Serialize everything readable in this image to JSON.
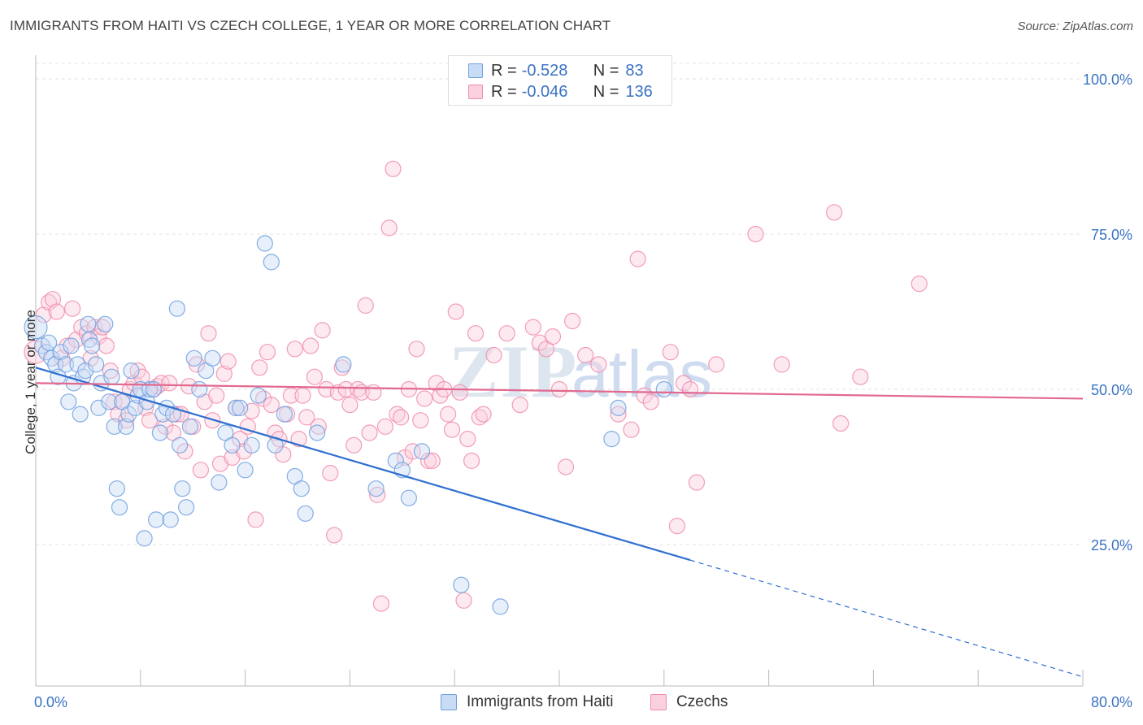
{
  "header": {
    "title": "IMMIGRANTS FROM HAITI VS CZECH COLLEGE, 1 YEAR OR MORE CORRELATION CHART",
    "source": "Source: ZipAtlas.com"
  },
  "stats_legend": [
    {
      "r_label": "R =",
      "r_value": "-0.528",
      "n_label": "N =",
      "n_value": "83",
      "color": "#6fa0e0",
      "fill": "#c9dcf5"
    },
    {
      "r_label": "R =",
      "r_value": "-0.046",
      "n_label": "N =",
      "n_value": "136",
      "color": "#f08cab",
      "fill": "#fbd0de"
    }
  ],
  "bottom_legend": [
    {
      "label": "Immigrants from Haiti",
      "color": "#6fa0e0",
      "fill": "#c9dcf5"
    },
    {
      "label": "Czechs",
      "color": "#f08cab",
      "fill": "#fbd0de"
    }
  ],
  "watermark": {
    "zip": "ZIP",
    "atlas": "atlas"
  },
  "chart_data": {
    "type": "scatter",
    "xlabel": "",
    "ylabel": "College, 1 year or more",
    "xlim": [
      0,
      80
    ],
    "ylim": [
      0,
      105
    ],
    "x_tick_labels": [
      {
        "value": 0,
        "label": "0.0%"
      },
      {
        "value": 80,
        "label": "80.0%"
      }
    ],
    "y_tick_labels": [
      {
        "value": 25,
        "label": "25.0%"
      },
      {
        "value": 50,
        "label": "50.0%"
      },
      {
        "value": 75,
        "label": "75.0%"
      },
      {
        "value": 100,
        "label": "100.0%"
      }
    ],
    "series": [
      {
        "name": "Immigrants from Haiti",
        "color": "#6fa0e0",
        "fill": "#c9dcf5",
        "trend": {
          "x0": 0,
          "y0": 53.5,
          "x1": 50,
          "y1": 22.5,
          "dash_x1": 80,
          "dash_y1": 3.7
        },
        "points": [
          [
            0.5,
            57
          ],
          [
            0.8,
            56
          ],
          [
            1,
            57.5
          ],
          [
            1.2,
            55
          ],
          [
            1.5,
            54
          ],
          [
            1.7,
            52
          ],
          [
            1.9,
            56
          ],
          [
            2.3,
            54
          ],
          [
            2.5,
            48
          ],
          [
            2.7,
            57
          ],
          [
            2.9,
            51
          ],
          [
            3.2,
            54
          ],
          [
            3.4,
            46
          ],
          [
            3.6,
            52
          ],
          [
            3.8,
            53
          ],
          [
            4.1,
            58
          ],
          [
            4.3,
            57
          ],
          [
            4.6,
            54
          ],
          [
            4.8,
            47
          ],
          [
            5,
            51
          ],
          [
            5.3,
            60.5
          ],
          [
            5.6,
            48
          ],
          [
            5.8,
            52
          ],
          [
            6,
            44
          ],
          [
            6.2,
            34
          ],
          [
            6.4,
            31
          ],
          [
            6.6,
            48
          ],
          [
            6.9,
            44
          ],
          [
            7.1,
            46
          ],
          [
            7.3,
            53
          ],
          [
            7.6,
            47
          ],
          [
            7.8,
            49
          ],
          [
            8,
            50
          ],
          [
            8.3,
            26
          ],
          [
            8.5,
            48
          ],
          [
            8.7,
            50
          ],
          [
            9,
            50
          ],
          [
            9.2,
            29
          ],
          [
            9.5,
            43
          ],
          [
            9.7,
            46
          ],
          [
            10,
            47
          ],
          [
            10.3,
            29
          ],
          [
            10.5,
            46
          ],
          [
            10.8,
            63
          ],
          [
            11,
            41
          ],
          [
            11.2,
            34
          ],
          [
            11.5,
            31
          ],
          [
            11.8,
            44
          ],
          [
            12.1,
            55
          ],
          [
            12.5,
            50
          ],
          [
            13,
            53
          ],
          [
            13.5,
            55
          ],
          [
            14,
            35
          ],
          [
            14.5,
            43
          ],
          [
            15,
            41
          ],
          [
            15.3,
            47
          ],
          [
            15.6,
            47
          ],
          [
            16,
            37
          ],
          [
            16.5,
            41
          ],
          [
            17,
            49
          ],
          [
            17.5,
            73.5
          ],
          [
            18,
            70.5
          ],
          [
            18.3,
            41
          ],
          [
            19,
            46
          ],
          [
            19.8,
            36
          ],
          [
            20.3,
            34
          ],
          [
            20.6,
            30
          ],
          [
            21.5,
            43
          ],
          [
            23.5,
            54
          ],
          [
            26,
            34
          ],
          [
            27.5,
            38.5
          ],
          [
            28,
            37
          ],
          [
            28.5,
            32.5
          ],
          [
            29.5,
            40
          ],
          [
            32.5,
            18.5
          ],
          [
            35.5,
            15
          ],
          [
            44.5,
            47
          ],
          [
            44,
            42
          ],
          [
            48,
            50
          ],
          [
            4,
            60.5
          ]
        ]
      },
      {
        "name": "Czechs",
        "color": "#f08cab",
        "fill": "#fbd0de",
        "trend": {
          "x0": 0,
          "y0": 51,
          "x1": 80,
          "y1": 48.5
        },
        "points": [
          [
            0.6,
            62
          ],
          [
            1,
            64
          ],
          [
            1.3,
            64.5
          ],
          [
            1.6,
            62.5
          ],
          [
            2,
            55
          ],
          [
            2.4,
            57
          ],
          [
            2.8,
            63
          ],
          [
            3.1,
            58
          ],
          [
            3.5,
            60
          ],
          [
            3.9,
            59
          ],
          [
            4.2,
            55
          ],
          [
            4.5,
            60
          ],
          [
            4.8,
            58.5
          ],
          [
            5.1,
            60
          ],
          [
            5.4,
            57
          ],
          [
            5.7,
            53
          ],
          [
            6,
            48
          ],
          [
            6.3,
            46
          ],
          [
            6.6,
            48
          ],
          [
            6.9,
            45
          ],
          [
            7.2,
            50
          ],
          [
            7.5,
            51
          ],
          [
            7.8,
            53
          ],
          [
            8.1,
            52
          ],
          [
            8.4,
            47
          ],
          [
            8.7,
            45
          ],
          [
            9,
            50
          ],
          [
            9.3,
            50.5
          ],
          [
            9.6,
            51
          ],
          [
            9.9,
            44
          ],
          [
            10.2,
            51
          ],
          [
            10.5,
            43
          ],
          [
            10.8,
            46
          ],
          [
            11.1,
            46
          ],
          [
            11.4,
            40
          ],
          [
            11.7,
            50.5
          ],
          [
            12,
            44
          ],
          [
            12.3,
            54
          ],
          [
            12.6,
            37
          ],
          [
            12.9,
            48
          ],
          [
            13.2,
            59
          ],
          [
            13.5,
            45
          ],
          [
            13.8,
            49
          ],
          [
            14.1,
            38
          ],
          [
            14.4,
            52.5
          ],
          [
            14.7,
            54.5
          ],
          [
            15,
            39
          ],
          [
            15.3,
            47
          ],
          [
            15.6,
            42
          ],
          [
            15.9,
            40
          ],
          [
            16.2,
            44
          ],
          [
            16.5,
            46.5
          ],
          [
            16.8,
            29
          ],
          [
            17.1,
            53.5
          ],
          [
            17.4,
            48.5
          ],
          [
            17.7,
            56
          ],
          [
            18,
            47.5
          ],
          [
            18.3,
            43
          ],
          [
            18.6,
            42
          ],
          [
            18.9,
            39.5
          ],
          [
            19.2,
            46
          ],
          [
            19.5,
            49
          ],
          [
            19.8,
            56.5
          ],
          [
            20.1,
            42
          ],
          [
            20.4,
            49
          ],
          [
            20.7,
            45.5
          ],
          [
            21,
            57
          ],
          [
            21.3,
            52
          ],
          [
            21.6,
            44
          ],
          [
            21.9,
            59.5
          ],
          [
            22.2,
            50
          ],
          [
            22.5,
            36.5
          ],
          [
            22.8,
            26.5
          ],
          [
            23.1,
            49.5
          ],
          [
            23.4,
            53.5
          ],
          [
            23.7,
            50
          ],
          [
            24,
            47.5
          ],
          [
            24.3,
            41
          ],
          [
            24.6,
            50
          ],
          [
            24.9,
            49.5
          ],
          [
            25.2,
            63.5
          ],
          [
            25.5,
            43
          ],
          [
            25.8,
            49.5
          ],
          [
            26.1,
            33
          ],
          [
            26.4,
            15.5
          ],
          [
            26.7,
            44
          ],
          [
            27,
            76
          ],
          [
            27.3,
            85.5
          ],
          [
            27.6,
            46
          ],
          [
            27.9,
            45.5
          ],
          [
            28.2,
            39
          ],
          [
            28.5,
            50
          ],
          [
            28.8,
            40
          ],
          [
            29.1,
            56.5
          ],
          [
            29.4,
            45
          ],
          [
            29.7,
            48.5
          ],
          [
            30,
            38.5
          ],
          [
            30.3,
            38.5
          ],
          [
            30.6,
            51
          ],
          [
            30.9,
            49
          ],
          [
            31.2,
            50
          ],
          [
            31.5,
            46
          ],
          [
            31.8,
            43.5
          ],
          [
            32.1,
            62.5
          ],
          [
            32.4,
            49.5
          ],
          [
            32.7,
            16
          ],
          [
            33,
            42
          ],
          [
            33.3,
            38.5
          ],
          [
            33.6,
            59
          ],
          [
            33.9,
            45.5
          ],
          [
            34.2,
            46
          ],
          [
            35,
            55.5
          ],
          [
            36,
            59
          ],
          [
            37,
            47.5
          ],
          [
            38,
            60
          ],
          [
            38.5,
            57.5
          ],
          [
            39,
            56.5
          ],
          [
            39.5,
            58.5
          ],
          [
            40,
            50
          ],
          [
            40.5,
            37.5
          ],
          [
            41,
            61
          ],
          [
            42,
            55.5
          ],
          [
            43,
            54
          ],
          [
            44.5,
            46
          ],
          [
            45.5,
            43.5
          ],
          [
            46,
            71
          ],
          [
            46.5,
            49
          ],
          [
            47,
            48
          ],
          [
            48.5,
            56
          ],
          [
            49,
            28
          ],
          [
            49.5,
            51
          ],
          [
            50,
            50
          ],
          [
            50.5,
            35
          ],
          [
            52,
            54
          ],
          [
            55,
            75
          ],
          [
            57,
            54
          ],
          [
            61,
            78.5
          ],
          [
            61.5,
            44.5
          ],
          [
            63,
            52
          ],
          [
            67.5,
            67
          ]
        ]
      }
    ]
  }
}
